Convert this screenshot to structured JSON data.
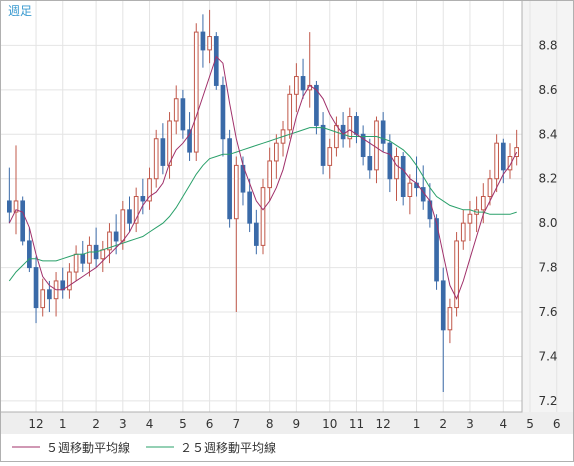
{
  "chart_data": {
    "type": "candlestick",
    "title": "週足",
    "y_ticks": [
      "8.8",
      "8.6",
      "8.4",
      "8.2",
      "8.0",
      "7.8",
      "7.6",
      "7.4",
      "7.2"
    ],
    "y_tick_values": [
      8.8,
      8.6,
      8.4,
      8.2,
      8.0,
      7.8,
      7.6,
      7.4,
      7.2
    ],
    "ylim": [
      7.15,
      9.0
    ],
    "grid": true,
    "x_ticks": [
      {
        "label": "12",
        "index": 4
      },
      {
        "label": "1",
        "index": 8
      },
      {
        "label": "2",
        "index": 13
      },
      {
        "label": "3",
        "index": 17
      },
      {
        "label": "4",
        "index": 21
      },
      {
        "label": "5",
        "index": 26
      },
      {
        "label": "6",
        "index": 30
      },
      {
        "label": "7",
        "index": 34
      },
      {
        "label": "8",
        "index": 39
      },
      {
        "label": "9",
        "index": 43
      },
      {
        "label": "10",
        "index": 48
      },
      {
        "label": "11",
        "index": 52
      },
      {
        "label": "12",
        "index": 56
      },
      {
        "label": "1",
        "index": 61
      },
      {
        "label": "2",
        "index": 65
      },
      {
        "label": "3",
        "index": 69
      },
      {
        "label": "4",
        "index": 74
      },
      {
        "label": "5",
        "index": 78
      },
      {
        "label": "6",
        "index": 82
      },
      {
        "label": "7",
        "index": 87
      },
      {
        "label": "8",
        "index": 91
      }
    ],
    "legend": [
      {
        "name": "５週移動平均線",
        "color": "#a0306a"
      },
      {
        "name": "２５週移動平均線",
        "color": "#2aa06a"
      }
    ],
    "legend_placement": "bottom",
    "colors": {
      "up": "#c0584a",
      "down": "#3a6aa8",
      "ma5": "#a0306a",
      "ma25": "#2aa06a",
      "grid": "#e4e4e4"
    },
    "ohlc": [
      [
        8.1,
        8.25,
        8.0,
        8.05
      ],
      [
        8.05,
        8.35,
        7.95,
        8.1
      ],
      [
        8.1,
        8.12,
        7.9,
        7.92
      ],
      [
        7.92,
        7.98,
        7.78,
        7.8
      ],
      [
        7.8,
        7.85,
        7.55,
        7.62
      ],
      [
        7.62,
        7.75,
        7.58,
        7.7
      ],
      [
        7.7,
        7.74,
        7.6,
        7.66
      ],
      [
        7.66,
        7.78,
        7.58,
        7.74
      ],
      [
        7.74,
        7.8,
        7.66,
        7.7
      ],
      [
        7.7,
        7.82,
        7.66,
        7.78
      ],
      [
        7.78,
        7.9,
        7.74,
        7.86
      ],
      [
        7.86,
        7.92,
        7.78,
        7.82
      ],
      [
        7.82,
        7.94,
        7.76,
        7.9
      ],
      [
        7.9,
        7.98,
        7.8,
        7.84
      ],
      [
        7.84,
        7.92,
        7.78,
        7.88
      ],
      [
        7.88,
        8.0,
        7.82,
        7.96
      ],
      [
        7.96,
        8.04,
        7.86,
        7.92
      ],
      [
        7.92,
        8.1,
        7.88,
        8.06
      ],
      [
        8.06,
        8.12,
        7.96,
        8.0
      ],
      [
        8.0,
        8.16,
        7.96,
        8.12
      ],
      [
        8.12,
        8.2,
        8.04,
        8.1
      ],
      [
        8.1,
        8.25,
        8.06,
        8.2
      ],
      [
        8.2,
        8.42,
        8.16,
        8.38
      ],
      [
        8.38,
        8.45,
        8.22,
        8.26
      ],
      [
        8.26,
        8.5,
        8.2,
        8.46
      ],
      [
        8.46,
        8.62,
        8.4,
        8.56
      ],
      [
        8.56,
        8.6,
        8.38,
        8.42
      ],
      [
        8.42,
        8.5,
        8.28,
        8.32
      ],
      [
        8.32,
        8.9,
        8.28,
        8.86
      ],
      [
        8.86,
        8.94,
        8.7,
        8.78
      ],
      [
        8.78,
        8.96,
        8.72,
        8.84
      ],
      [
        8.84,
        8.86,
        8.6,
        8.62
      ],
      [
        8.62,
        8.66,
        8.3,
        8.38
      ],
      [
        8.38,
        8.42,
        7.98,
        8.02
      ],
      [
        8.02,
        8.3,
        7.6,
        8.26
      ],
      [
        8.26,
        8.3,
        8.08,
        8.14
      ],
      [
        8.14,
        8.2,
        7.96,
        8.0
      ],
      [
        8.0,
        8.06,
        7.86,
        7.9
      ],
      [
        7.9,
        8.2,
        7.86,
        8.16
      ],
      [
        8.16,
        8.34,
        8.1,
        8.28
      ],
      [
        8.28,
        8.4,
        8.2,
        8.36
      ],
      [
        8.36,
        8.46,
        8.3,
        8.42
      ],
      [
        8.42,
        8.62,
        8.38,
        8.58
      ],
      [
        8.58,
        8.72,
        8.5,
        8.66
      ],
      [
        8.66,
        8.74,
        8.56,
        8.6
      ],
      [
        8.6,
        8.86,
        8.52,
        8.62
      ],
      [
        8.62,
        8.64,
        8.4,
        8.44
      ],
      [
        8.44,
        8.5,
        8.22,
        8.26
      ],
      [
        8.26,
        8.38,
        8.2,
        8.34
      ],
      [
        8.34,
        8.48,
        8.3,
        8.44
      ],
      [
        8.44,
        8.5,
        8.34,
        8.38
      ],
      [
        8.38,
        8.52,
        8.34,
        8.48
      ],
      [
        8.48,
        8.5,
        8.36,
        8.4
      ],
      [
        8.4,
        8.44,
        8.26,
        8.3
      ],
      [
        8.3,
        8.38,
        8.2,
        8.24
      ],
      [
        8.24,
        8.48,
        8.18,
        8.46
      ],
      [
        8.46,
        8.5,
        8.32,
        8.36
      ],
      [
        8.36,
        8.4,
        8.14,
        8.2
      ],
      [
        8.2,
        8.34,
        8.1,
        8.3
      ],
      [
        8.3,
        8.32,
        8.08,
        8.12
      ],
      [
        8.12,
        8.22,
        8.04,
        8.18
      ],
      [
        8.18,
        8.3,
        8.12,
        8.16
      ],
      [
        8.16,
        8.26,
        8.06,
        8.1
      ],
      [
        8.1,
        8.18,
        7.98,
        8.02
      ],
      [
        8.02,
        8.04,
        7.7,
        7.74
      ],
      [
        7.74,
        7.8,
        7.24,
        7.52
      ],
      [
        7.52,
        7.66,
        7.46,
        7.62
      ],
      [
        7.62,
        7.96,
        7.58,
        7.92
      ],
      [
        7.92,
        8.06,
        7.88,
        8.0
      ],
      [
        8.0,
        8.1,
        7.92,
        8.04
      ],
      [
        8.04,
        8.12,
        7.96,
        8.06
      ],
      [
        8.06,
        8.18,
        8.0,
        8.12
      ],
      [
        8.12,
        8.24,
        8.08,
        8.2
      ],
      [
        8.2,
        8.4,
        8.14,
        8.36
      ],
      [
        8.36,
        8.38,
        8.18,
        8.24
      ],
      [
        8.24,
        8.36,
        8.2,
        8.3
      ],
      [
        8.3,
        8.42,
        8.26,
        8.34
      ]
    ],
    "ma5": [
      8.0,
      8.06,
      8.05,
      7.98,
      7.86,
      7.76,
      7.72,
      7.7,
      7.7,
      7.72,
      7.74,
      7.76,
      7.78,
      7.8,
      7.83,
      7.86,
      7.89,
      7.92,
      7.96,
      8.02,
      8.08,
      8.12,
      8.14,
      8.18,
      8.27,
      8.33,
      8.36,
      8.4,
      8.48,
      8.57,
      8.66,
      8.75,
      8.72,
      8.54,
      8.38,
      8.26,
      8.18,
      8.1,
      8.06,
      8.1,
      8.16,
      8.24,
      8.36,
      8.48,
      8.57,
      8.62,
      8.6,
      8.56,
      8.49,
      8.44,
      8.4,
      8.42,
      8.4,
      8.38,
      8.36,
      8.34,
      8.32,
      8.31,
      8.26,
      8.24,
      8.2,
      8.18,
      8.14,
      8.1,
      8.0,
      7.86,
      7.72,
      7.66,
      7.74,
      7.84,
      7.94,
      8.04,
      8.1,
      8.16,
      8.22,
      8.26,
      8.32
    ],
    "ma25": [
      7.74,
      7.78,
      7.81,
      7.84,
      7.84,
      7.83,
      7.83,
      7.83,
      7.84,
      7.85,
      7.86,
      7.86,
      7.87,
      7.87,
      7.88,
      7.89,
      7.9,
      7.91,
      7.92,
      7.93,
      7.94,
      7.96,
      7.98,
      8.0,
      8.03,
      8.07,
      8.12,
      8.17,
      8.22,
      8.26,
      8.29,
      8.3,
      8.31,
      8.31,
      8.32,
      8.33,
      8.34,
      8.35,
      8.36,
      8.37,
      8.38,
      8.39,
      8.4,
      8.41,
      8.42,
      8.43,
      8.43,
      8.43,
      8.42,
      8.41,
      8.4,
      8.39,
      8.39,
      8.39,
      8.39,
      8.39,
      8.38,
      8.37,
      8.35,
      8.33,
      8.3,
      8.26,
      8.21,
      8.16,
      8.12,
      8.1,
      8.08,
      8.07,
      8.06,
      8.06,
      8.05,
      8.05,
      8.04,
      8.04,
      8.04,
      8.04,
      8.05
    ]
  }
}
